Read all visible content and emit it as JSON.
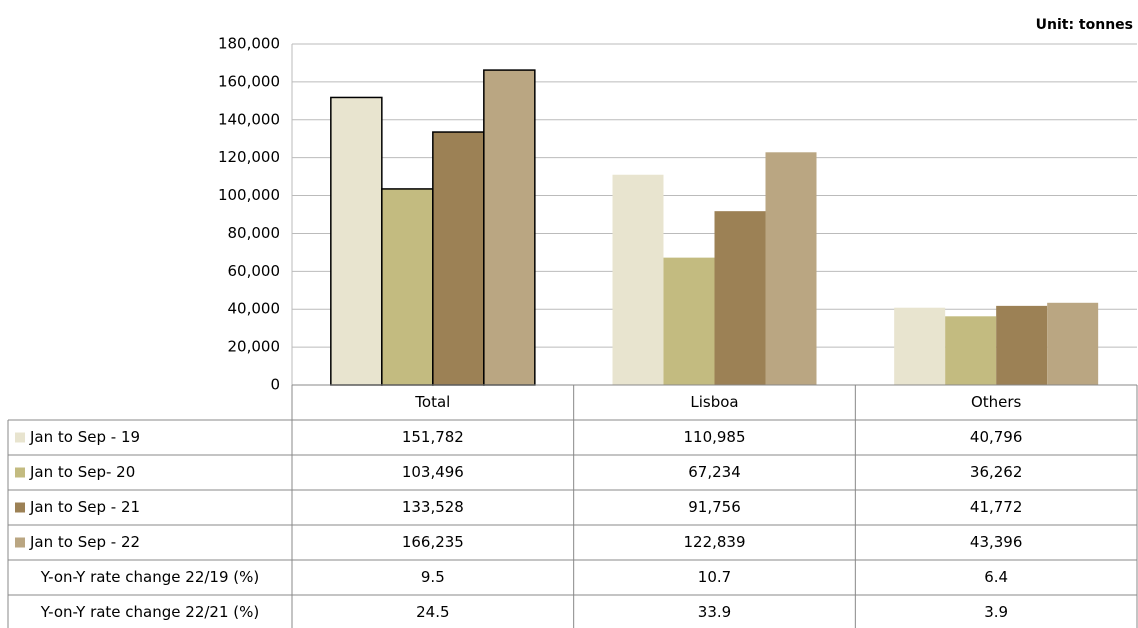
{
  "chart_data": {
    "type": "bar",
    "unit": "Unit: tonnes",
    "categories": [
      "Total",
      "Lisboa",
      "Others"
    ],
    "series": [
      {
        "name": "Jan to Sep - 19",
        "color": "#e8e4cf",
        "values": [
          151782,
          110985,
          40796
        ],
        "value_labels": [
          "151,782",
          "110,985",
          "40,796"
        ]
      },
      {
        "name": "Jan to Sep- 20",
        "color": "#c3bb80",
        "values": [
          103496,
          67234,
          36262
        ],
        "value_labels": [
          "103,496",
          "67,234",
          "36,262"
        ]
      },
      {
        "name": "Jan to Sep - 21",
        "color": "#9c8155",
        "values": [
          133528,
          91756,
          41772
        ],
        "value_labels": [
          "133,528",
          "91,756",
          "41,772"
        ]
      },
      {
        "name": "Jan to Sep - 22",
        "color": "#baa682",
        "values": [
          166235,
          122839,
          43396
        ],
        "value_labels": [
          "166,235",
          "122,839",
          "43,396"
        ]
      }
    ],
    "outlined": [
      true,
      false,
      false
    ],
    "extra_rows": [
      {
        "name": "Y-on-Y rate change 22/19 (%)",
        "values": [
          9.5,
          10.7,
          6.4
        ]
      },
      {
        "name": "Y-on-Y rate change 22/21 (%)",
        "values": [
          24.5,
          33.9,
          3.9
        ]
      }
    ],
    "ylim": [
      0,
      180000
    ],
    "yticks": [
      0,
      {
        "value": 20000,
        "label": "20,000"
      },
      {
        "value": 40000,
        "label": "40,000"
      },
      {
        "value": 60000,
        "label": "60,000"
      },
      {
        "value": 80000,
        "label": "80,000"
      },
      {
        "value": 100000,
        "label": "100,000"
      },
      {
        "value": 120000,
        "label": "120,000"
      },
      {
        "value": 140000,
        "label": "140,000"
      },
      {
        "value": 160000,
        "label": "160,000"
      },
      {
        "value": 180000,
        "label": "180,000"
      }
    ],
    "grid": true
  }
}
